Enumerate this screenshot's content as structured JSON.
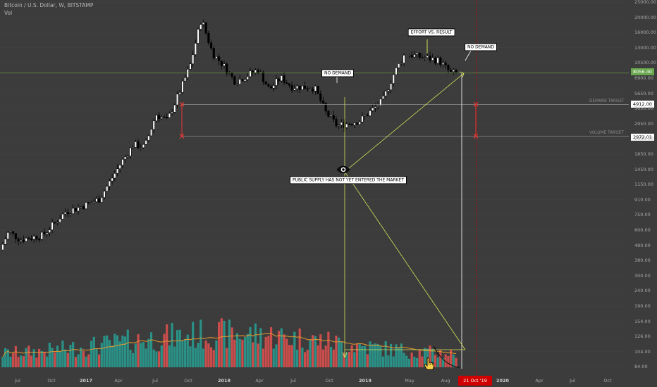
{
  "chart": {
    "title": "Bitcoin / U.S. Dollar, W, BITSTAMP",
    "subtitle": "Vol",
    "current_price": {
      "label": "8056.40",
      "color": "#6aa84f"
    },
    "targets": [
      {
        "name": "DEMARK TARGET",
        "price_label": "4912.00"
      },
      {
        "name": "VOLUME TARGET",
        "price_label": "2972.01"
      }
    ],
    "annotations": {
      "no_demand_1": "NO DEMAND",
      "effort_vs_result": "EFFORT VS. RESULT",
      "no_demand_2": "NO DEMAND",
      "public_supply": "PUBLIC SUPPLY HAS NOT YET ENTERED THE MARKET"
    },
    "date_badge": "21 Oct '19",
    "y_ticks": [
      "25000.00",
      "20000.00",
      "16000.00",
      "13000.00",
      "10500.00",
      "6900.00",
      "5650.00",
      "3650.00",
      "2950.00",
      "2350.00",
      "1850.00",
      "1450.00",
      "1150.00",
      "910.00",
      "750.00",
      "600.00",
      "480.00",
      "380.00",
      "300.00",
      "240.00",
      "190.00",
      "154.00",
      "126.00",
      "104.00",
      "84.00"
    ],
    "x_ticks": [
      {
        "label": "Jul",
        "bold": false
      },
      {
        "label": "Oct",
        "bold": false
      },
      {
        "label": "2017",
        "bold": true
      },
      {
        "label": "Apr",
        "bold": false
      },
      {
        "label": "Jul",
        "bold": false
      },
      {
        "label": "Oct",
        "bold": false
      },
      {
        "label": "2018",
        "bold": true
      },
      {
        "label": "Apr",
        "bold": false
      },
      {
        "label": "Jul",
        "bold": false
      },
      {
        "label": "Oct",
        "bold": false
      },
      {
        "label": "2019",
        "bold": true
      },
      {
        "label": "May",
        "bold": false
      },
      {
        "label": "Aug",
        "bold": false
      },
      {
        "label": "2020",
        "bold": true
      },
      {
        "label": "Apr",
        "bold": false
      },
      {
        "label": "Jul",
        "bold": false
      },
      {
        "label": "Oct",
        "bold": false
      }
    ],
    "colors": {
      "background": "#3c3c3c",
      "up_candle": "#ffffff",
      "down_candle": "#000000",
      "volume_up": "#26a69a",
      "volume_down": "#ef5350",
      "volume_ma": "#e69a2e",
      "trend_lines": "#d4e157",
      "vertical_marker": "#d00000"
    }
  },
  "chart_data": {
    "type": "candlestick",
    "title": "Bitcoin / U.S. Dollar, W, BITSTAMP",
    "y_scale": "log",
    "ylim": [
      60,
      25000
    ],
    "x_range": [
      "2016-06",
      "2020-12"
    ],
    "price_path": [
      [
        "2016-06",
        450
      ],
      [
        "2016-07",
        660
      ],
      [
        "2016-08",
        580
      ],
      [
        "2016-10",
        620
      ],
      [
        "2016-12",
        900
      ],
      [
        "2017-01",
        950
      ],
      [
        "2017-03",
        1100
      ],
      [
        "2017-05",
        2000
      ],
      [
        "2017-06",
        2600
      ],
      [
        "2017-07",
        2500
      ],
      [
        "2017-08",
        4200
      ],
      [
        "2017-09",
        3800
      ],
      [
        "2017-10",
        5800
      ],
      [
        "2017-11",
        9000
      ],
      [
        "2017-12",
        19000
      ],
      [
        "2018-01",
        11000
      ],
      [
        "2018-02",
        9000
      ],
      [
        "2018-03",
        7000
      ],
      [
        "2018-05",
        8500
      ],
      [
        "2018-06",
        6200
      ],
      [
        "2018-07",
        7500
      ],
      [
        "2018-08",
        6500
      ],
      [
        "2018-10",
        6400
      ],
      [
        "2018-11",
        4300
      ],
      [
        "2018-12",
        3500
      ],
      [
        "2019-02",
        3800
      ],
      [
        "2019-04",
        5200
      ],
      [
        "2019-05",
        8000
      ],
      [
        "2019-06",
        11000
      ],
      [
        "2019-07",
        10500
      ],
      [
        "2019-08",
        10200
      ],
      [
        "2019-09",
        9800
      ],
      [
        "2019-10",
        8056.4
      ]
    ],
    "horizontal_levels": [
      {
        "name": "DEMARK TARGET",
        "value": 4912.0
      },
      {
        "name": "VOLUME TARGET",
        "value": 2972.01
      },
      {
        "name": "Current",
        "value": 8056.4
      }
    ],
    "volume": {
      "ma_period": 20,
      "peak_month": "2018-02"
    }
  }
}
